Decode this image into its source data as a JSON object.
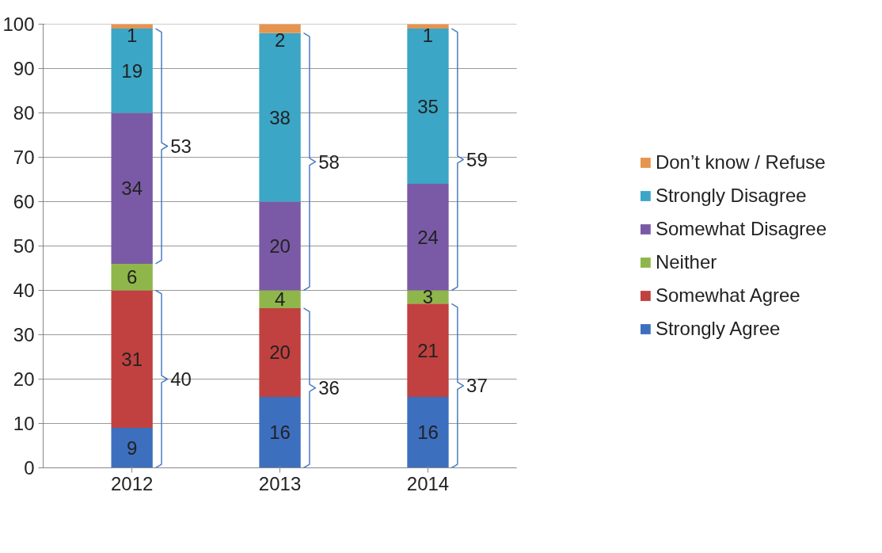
{
  "chart_data": {
    "type": "bar",
    "stacked": true,
    "categories": [
      "2012",
      "2013",
      "2014"
    ],
    "series": [
      {
        "name": "Strongly Agree",
        "color": "#3d6fbf",
        "values": [
          9,
          16,
          16
        ]
      },
      {
        "name": "Somewhat Agree",
        "color": "#c0413f",
        "values": [
          31,
          20,
          21
        ]
      },
      {
        "name": "Neither",
        "color": "#8fb64a",
        "values": [
          6,
          4,
          3
        ]
      },
      {
        "name": "Somewhat Disagree",
        "color": "#7a5aa6",
        "values": [
          34,
          20,
          24
        ]
      },
      {
        "name": "Strongly Disagree",
        "color": "#3ba6c6",
        "values": [
          19,
          38,
          35
        ]
      },
      {
        "name": "Don’t know / Refuse",
        "color": "#e6944e",
        "values": [
          1,
          2,
          1
        ]
      }
    ],
    "data_labels": true,
    "ylim": [
      0,
      100
    ],
    "yticks": [
      0,
      10,
      20,
      30,
      40,
      50,
      60,
      70,
      80,
      90,
      100
    ],
    "grid": "y",
    "legend": "right",
    "annotations": [
      "53",
      "40",
      "58",
      "36",
      "59",
      "37"
    ]
  }
}
